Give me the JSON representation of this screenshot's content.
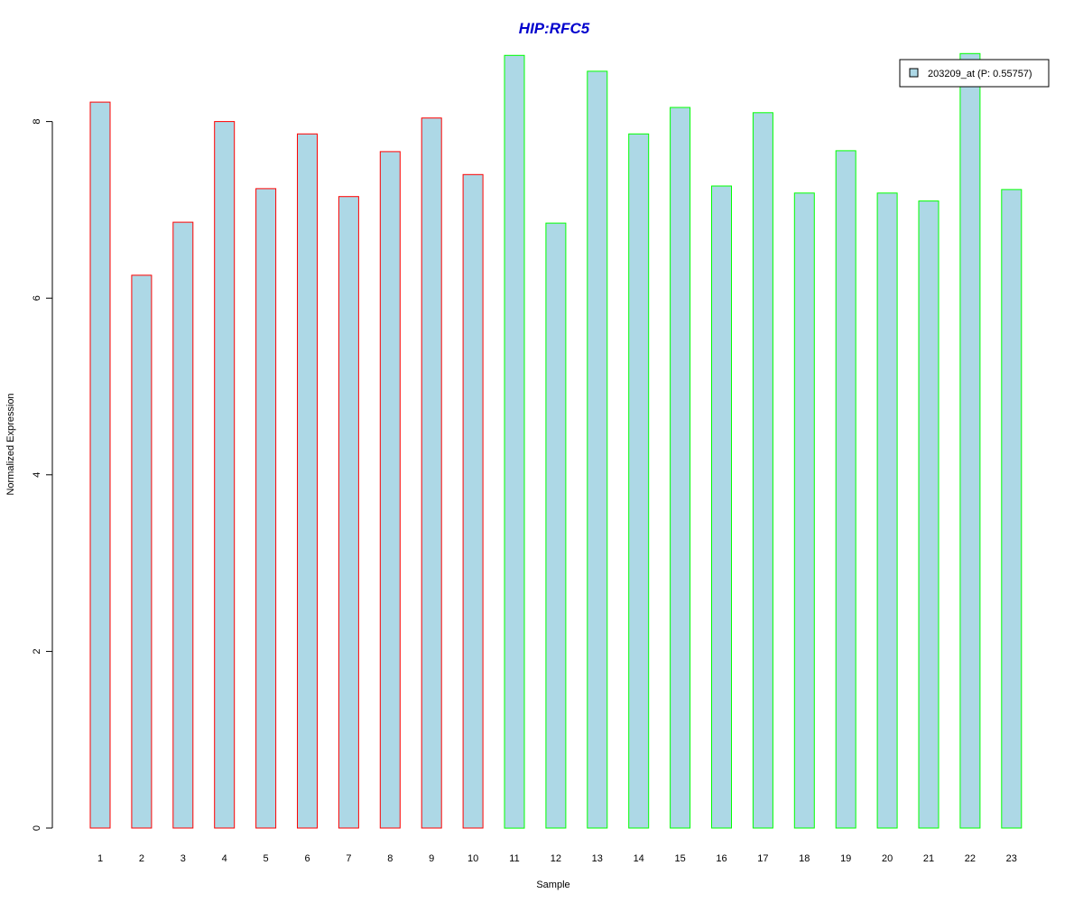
{
  "chart_data": {
    "type": "bar",
    "title": "HIP:RFC5",
    "xlabel": "Sample",
    "ylabel": "Normalized Expression",
    "ylim": [
      0,
      8.8
    ],
    "yticks": [
      "0",
      "2",
      "4",
      "6",
      "8"
    ],
    "categories": [
      "1",
      "2",
      "3",
      "4",
      "5",
      "6",
      "7",
      "8",
      "9",
      "10",
      "11",
      "12",
      "13",
      "14",
      "15",
      "16",
      "17",
      "18",
      "19",
      "20",
      "21",
      "22",
      "23"
    ],
    "values": [
      8.22,
      6.26,
      6.86,
      8.0,
      7.24,
      7.86,
      7.15,
      7.66,
      8.04,
      7.4,
      8.75,
      6.85,
      8.57,
      7.86,
      8.16,
      7.27,
      8.1,
      7.19,
      7.67,
      7.19,
      7.1,
      8.77,
      7.23
    ],
    "groups": [
      "red",
      "red",
      "red",
      "red",
      "red",
      "red",
      "red",
      "red",
      "red",
      "red",
      "green",
      "green",
      "green",
      "green",
      "green",
      "green",
      "green",
      "green",
      "green",
      "green",
      "green",
      "green",
      "green"
    ],
    "legend": {
      "position": "top-right",
      "entries": [
        {
          "label": "203209_at (P: 0.55757)",
          "color": "#add8e6"
        }
      ]
    },
    "colors": {
      "bar_fill": "#add8e6",
      "red_border": "#ff0000",
      "green_border": "#00ff00",
      "title": "#0000cd"
    },
    "grid": false
  }
}
